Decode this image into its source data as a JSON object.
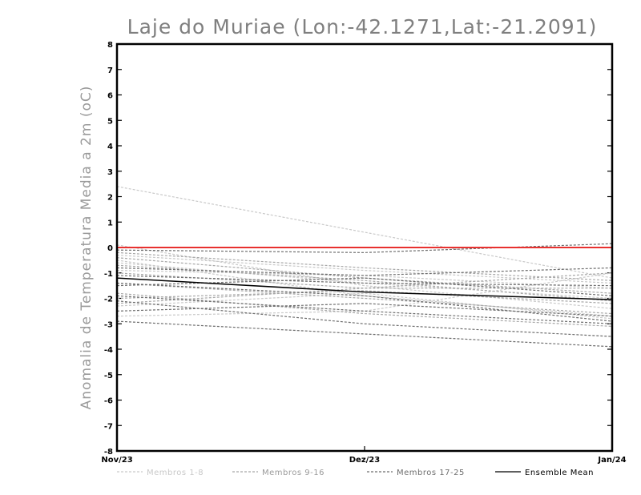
{
  "chart_data": {
    "type": "line",
    "title": "Laje do Muriae (Lon:-42.1271,Lat:-21.2091)",
    "xlabel": "",
    "ylabel": "Anomalia de Temperatura Media a 2m (oC)",
    "categories": [
      "Nov/23",
      "Dez/23",
      "Jan/24"
    ],
    "ylim": [
      -8,
      8
    ],
    "yticks": [
      -8,
      -7,
      -6,
      -5,
      -4,
      -3,
      -2,
      -1,
      0,
      1,
      2,
      3,
      4,
      5,
      6,
      7,
      8
    ],
    "grid": false,
    "reference_line": {
      "value": 0,
      "color": "#e8312f"
    },
    "groups": [
      {
        "name": "Membros 1-8",
        "color": "#c9c9c9",
        "style": "dashed",
        "series": [
          [
            2.4,
            0.6,
            -1.2
          ],
          [
            0.1,
            -1.5,
            -2.4
          ],
          [
            -0.3,
            -0.9,
            -1.4
          ],
          [
            -0.6,
            -1.4,
            -2.0
          ],
          [
            -2.7,
            -2.5,
            -1.0
          ],
          [
            -2.3,
            -1.8,
            -2.8
          ],
          [
            -0.5,
            -1.9,
            -2.7
          ],
          [
            -0.9,
            -1.1,
            -1.6
          ]
        ]
      },
      {
        "name": "Membros 9-16",
        "color": "#a8a8a8",
        "style": "dashed",
        "series": [
          [
            -0.4,
            -1.2,
            -1.8
          ],
          [
            -1.0,
            -1.6,
            -1.6
          ],
          [
            -1.4,
            -2.0,
            -2.6
          ],
          [
            -2.0,
            -1.7,
            -2.2
          ],
          [
            -0.2,
            -0.8,
            -1.3
          ],
          [
            -1.8,
            -2.6,
            -3.1
          ],
          [
            -2.2,
            -1.6,
            -1.0
          ],
          [
            -0.7,
            -1.3,
            -2.1
          ]
        ]
      },
      {
        "name": "Membros 17-25",
        "color": "#6e6e6e",
        "style": "dashed",
        "series": [
          [
            -0.1,
            -0.2,
            0.15
          ],
          [
            -0.8,
            -1.1,
            -0.8
          ],
          [
            -1.1,
            -1.4,
            -1.5
          ],
          [
            -1.4,
            -1.9,
            -2.9
          ],
          [
            -1.9,
            -2.5,
            -3.0
          ],
          [
            -2.1,
            -3.0,
            -3.5
          ],
          [
            -2.9,
            -3.4,
            -3.9
          ],
          [
            -1.5,
            -1.2,
            -1.9
          ],
          [
            -2.5,
            -2.2,
            -2.7
          ]
        ]
      }
    ],
    "ensemble_mean": {
      "name": "Ensemble Mean",
      "color": "#000000",
      "values": [
        -1.2,
        -1.75,
        -2.05
      ]
    },
    "legend": {
      "position": "bottom",
      "entries": [
        {
          "label": "Membros 1-8",
          "color": "#c9c9c9",
          "text_color": "#c9c9c9",
          "dash": true
        },
        {
          "label": "Membros 9-16",
          "color": "#a8a8a8",
          "text_color": "#9a9a9a",
          "dash": true
        },
        {
          "label": "Membros 17-25",
          "color": "#6e6e6e",
          "text_color": "#6e6e6e",
          "dash": true
        },
        {
          "label": "Ensemble Mean",
          "color": "#000000",
          "text_color": "#000000",
          "dash": false
        }
      ]
    }
  }
}
